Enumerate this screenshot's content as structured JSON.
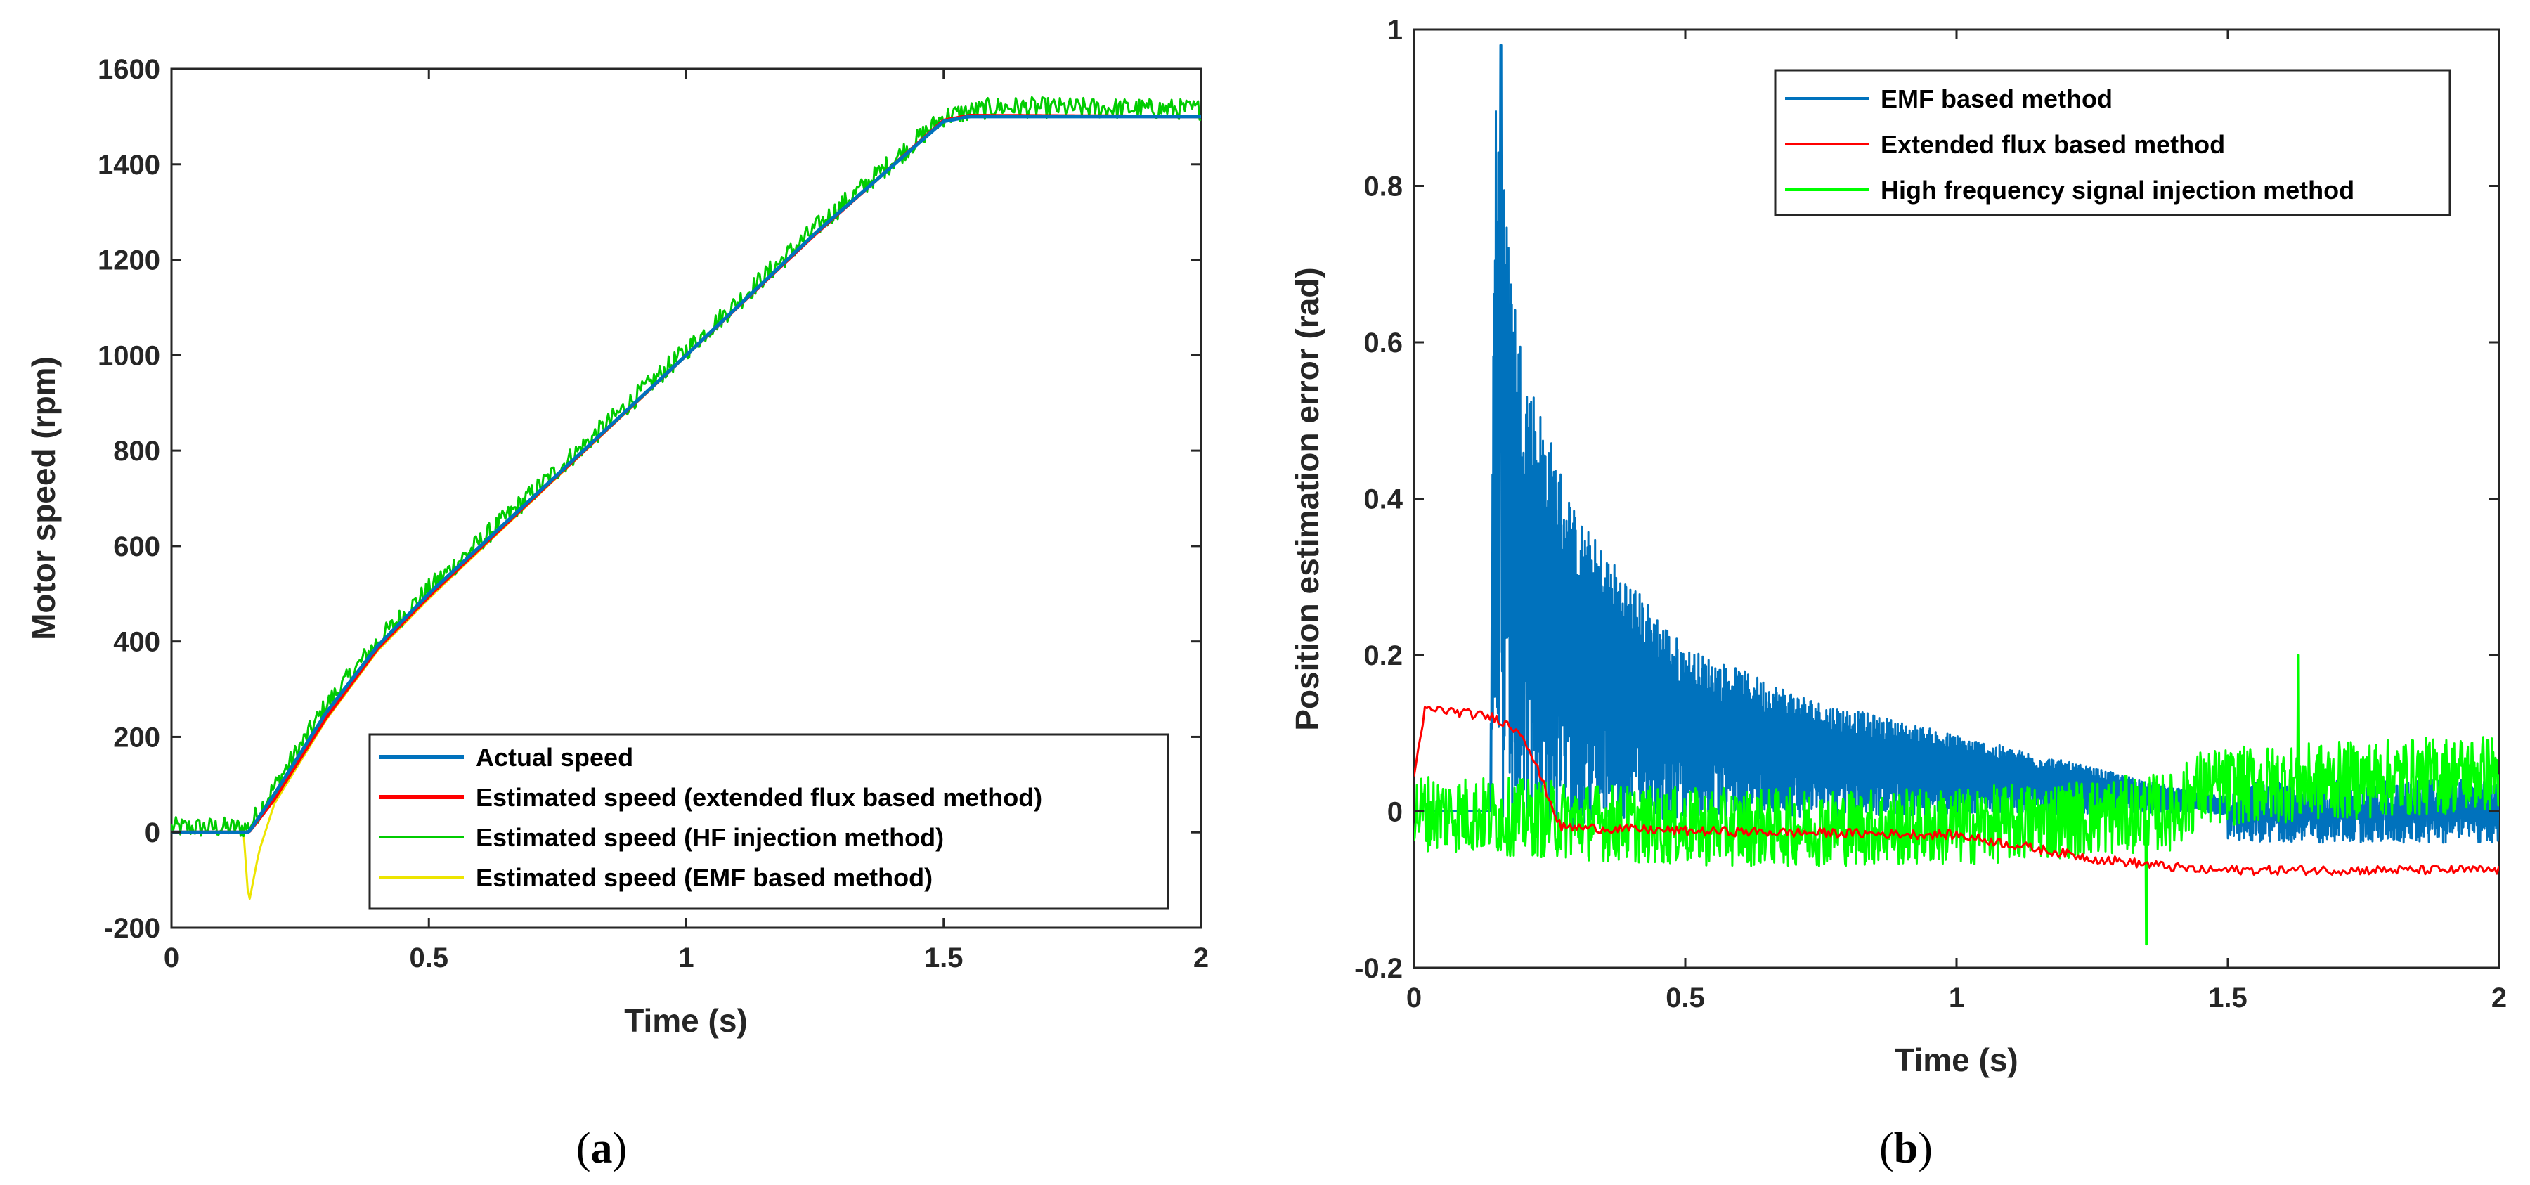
{
  "chart_data": [
    {
      "type": "line",
      "caption": "a",
      "xlabel": "Time (s)",
      "ylabel": "Motor speed (rpm)",
      "xlim": [
        0,
        2
      ],
      "ylim": [
        -200,
        1600
      ],
      "xticks": [
        "0",
        "0.5",
        "1",
        "1.5",
        "2"
      ],
      "yticks": [
        "-200",
        "0",
        "200",
        "400",
        "600",
        "800",
        "1000",
        "1200",
        "1400",
        "1600"
      ],
      "legend_position": "bottom-right",
      "series": [
        {
          "name": "Actual speed",
          "color": "#0072BD",
          "x": [
            0,
            0.15,
            0.2,
            0.3,
            0.4,
            0.5,
            0.75,
            1.0,
            1.25,
            1.5,
            1.55,
            2.0
          ],
          "y": [
            0,
            0,
            80,
            250,
            390,
            500,
            750,
            1000,
            1255,
            1490,
            1500,
            1500
          ]
        },
        {
          "name": "Estimated speed (extended flux based method)",
          "color": "#FF0000",
          "x": [
            0,
            0.15,
            0.2,
            0.3,
            0.4,
            0.5,
            0.75,
            1.0,
            1.25,
            1.5,
            1.55,
            2.0
          ],
          "y": [
            0,
            0,
            70,
            240,
            385,
            495,
            748,
            1000,
            1253,
            1492,
            1502,
            1500
          ]
        },
        {
          "name": "Estimated speed (HF injection method)",
          "color": "#00CC00",
          "x": [
            0,
            0.15,
            0.2,
            0.3,
            0.4,
            0.5,
            0.75,
            1.0,
            1.25,
            1.5,
            1.6,
            2.0
          ],
          "y": [
            10,
            10,
            95,
            265,
            400,
            510,
            760,
            1010,
            1265,
            1500,
            1520,
            1515
          ],
          "noise": 22
        },
        {
          "name": "Estimated speed (EMF based method)",
          "color": "#EDE500",
          "x": [
            0,
            0.14,
            0.15,
            0.17,
            0.2,
            0.3,
            0.4,
            0.5,
            0.75,
            1.0,
            1.25,
            1.5,
            1.55,
            2.0
          ],
          "y": [
            0,
            0,
            -150,
            -40,
            60,
            235,
            380,
            490,
            745,
            998,
            1252,
            1490,
            1500,
            1500
          ]
        }
      ]
    },
    {
      "type": "line",
      "caption": "b",
      "xlabel": "Time (s)",
      "ylabel": "Position estimation error (rad)",
      "xlim": [
        0,
        2
      ],
      "ylim": [
        -0.2,
        1
      ],
      "xticks": [
        "0",
        "0.5",
        "1",
        "1.5",
        "2"
      ],
      "yticks": [
        "-0.2",
        "0",
        "0.2",
        "0.4",
        "0.6",
        "0.8",
        "1"
      ],
      "legend_position": "top-right",
      "series": [
        {
          "name": "EMF based method",
          "color": "#0072BD",
          "x": [
            0.14,
            0.15,
            0.17,
            0.2,
            0.3,
            0.5,
            0.75,
            1.0,
            1.25,
            1.5,
            2.0
          ],
          "y": [
            0.0,
            0.7,
            0.55,
            0.42,
            0.27,
            0.15,
            0.1,
            0.07,
            0.04,
            0.01,
            0.0
          ],
          "spike": [
            0.16,
            0.98
          ]
        },
        {
          "name": "Extended flux based method",
          "color": "#FF0000",
          "x": [
            0,
            0.02,
            0.05,
            0.1,
            0.15,
            0.2,
            0.23,
            0.27,
            0.5,
            1.0,
            1.25,
            1.45,
            2.0
          ],
          "y": [
            0.04,
            0.13,
            0.13,
            0.125,
            0.12,
            0.1,
            0.05,
            -0.02,
            -0.025,
            -0.03,
            -0.06,
            -0.075,
            -0.075
          ]
        },
        {
          "name": "High frequency signal injection method",
          "color": "#00FF00",
          "x": [
            0,
            0.5,
            1.0,
            1.4,
            1.45,
            2.0
          ],
          "y": [
            0.0,
            -0.02,
            -0.02,
            0.0,
            0.03,
            0.05
          ],
          "noise": 0.05,
          "peaks": [
            [
              1.63,
              0.2
            ],
            [
              1.35,
              -0.17
            ]
          ]
        }
      ]
    }
  ]
}
